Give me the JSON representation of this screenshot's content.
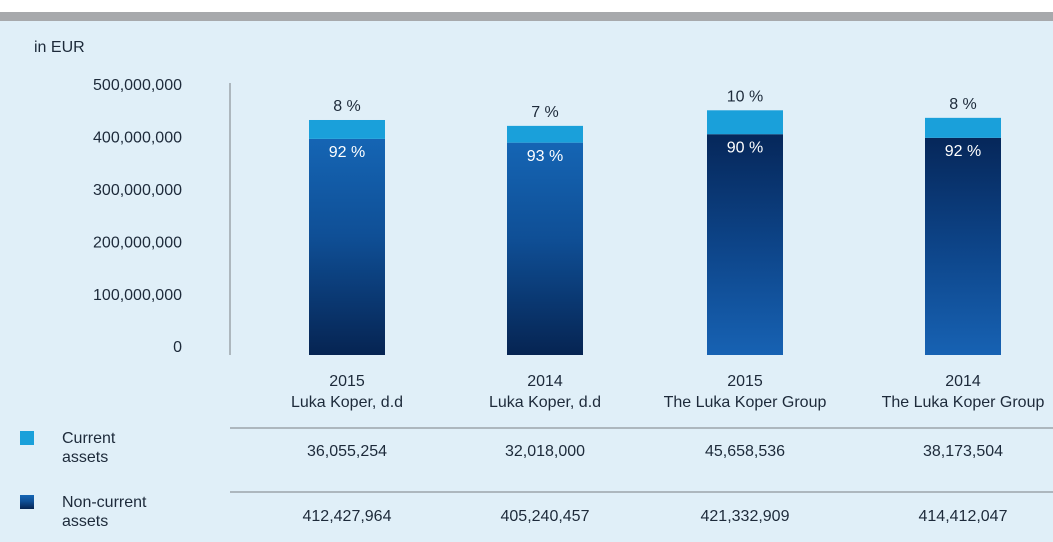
{
  "chart_data": {
    "type": "stacked_bar",
    "unit_label": "in EUR",
    "categories": [
      "2015",
      "2014",
      "2015",
      "2014"
    ],
    "category_sublabels": [
      "Luka Koper, d.d",
      "Luka Koper, d.d",
      "The Luka Koper Group",
      "The Luka Koper Group"
    ],
    "series": [
      {
        "name": "Current assets",
        "color": "#1aa0da",
        "values": [
          36055254,
          32018000,
          45658536,
          38173504
        ],
        "value_labels": [
          "36,055,254",
          "32,018,000",
          "45,658,536",
          "38,173,504"
        ],
        "percent_labels": [
          "8 %",
          "7 %",
          "10 %",
          "8 %"
        ]
      },
      {
        "name": "Non-current assets",
        "color": "#0d3a78",
        "values": [
          412427964,
          405240457,
          421332909,
          414412047
        ],
        "value_labels": [
          "412,427,964",
          "405,240,457",
          "421,332,909",
          "414,412,047"
        ],
        "percent_labels": [
          "92 %",
          "93 %",
          "90 %",
          "92 %"
        ]
      }
    ],
    "ylim": [
      0,
      500000000
    ],
    "yticks": [
      {
        "value": 0,
        "label": "0"
      },
      {
        "value": 100000000,
        "label": "100,000,000"
      },
      {
        "value": 200000000,
        "label": "200,000,000"
      },
      {
        "value": 300000000,
        "label": "300,000,000"
      },
      {
        "value": 400000000,
        "label": "400,000,000"
      },
      {
        "value": 500000000,
        "label": "500,000,000"
      }
    ]
  }
}
